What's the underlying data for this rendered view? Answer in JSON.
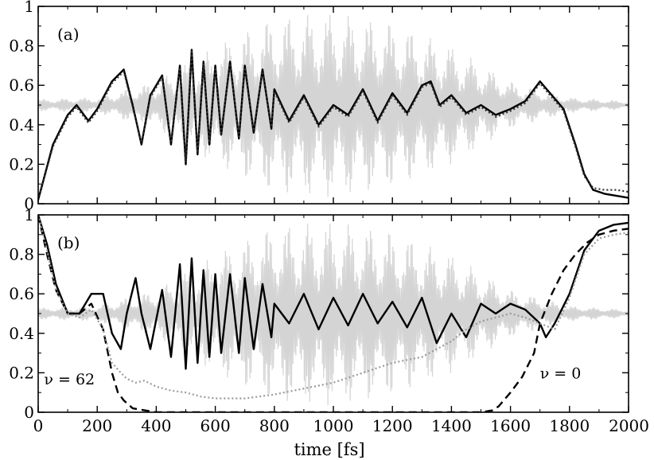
{
  "colors": {
    "fast_oscillation": "#d4d4d4",
    "solid": "#000000",
    "dashed": "#000000",
    "dotted_light": "#9a9a9a",
    "dotted_dark": "#333333"
  },
  "chart_data": [
    {
      "type": "line",
      "panel_label": "(a)",
      "xlabel": "",
      "ylabel": "",
      "xlim": [
        0,
        2000
      ],
      "ylim": [
        0,
        1
      ],
      "y_ticks": [
        "0",
        "0.2",
        "0.4",
        "0.6",
        "0.8",
        "1"
      ],
      "y_tick_values": [
        0,
        0.2,
        0.4,
        0.6,
        0.8,
        1
      ],
      "grid": false,
      "series": [
        {
          "style": "gray-band",
          "x": [
            0,
            200,
            400,
            600,
            800,
            1000,
            1200,
            1400,
            1600,
            1800,
            2000
          ],
          "y": [
            0.5,
            0.5,
            0.5,
            0.5,
            0.5,
            0.5,
            0.5,
            0.5,
            0.5,
            0.5,
            0.5
          ],
          "amplitude": [
            0.03,
            0.04,
            0.12,
            0.3,
            0.45,
            0.47,
            0.42,
            0.3,
            0.12,
            0.04,
            0.02
          ]
        },
        {
          "style": "solid",
          "x": [
            0,
            50,
            100,
            130,
            170,
            200,
            250,
            290,
            320,
            350,
            380,
            420,
            450,
            480,
            500,
            520,
            540,
            560,
            580,
            600,
            620,
            650,
            680,
            700,
            730,
            760,
            790,
            800,
            850,
            900,
            950,
            1000,
            1050,
            1100,
            1150,
            1200,
            1250,
            1300,
            1330,
            1360,
            1400,
            1450,
            1500,
            1550,
            1600,
            1650,
            1700,
            1740,
            1780,
            1820,
            1850,
            1880,
            1920,
            1960,
            2000
          ],
          "y": [
            0.02,
            0.3,
            0.45,
            0.5,
            0.42,
            0.48,
            0.62,
            0.68,
            0.5,
            0.3,
            0.55,
            0.65,
            0.3,
            0.7,
            0.2,
            0.78,
            0.25,
            0.72,
            0.3,
            0.7,
            0.35,
            0.72,
            0.33,
            0.7,
            0.36,
            0.68,
            0.38,
            0.58,
            0.42,
            0.55,
            0.4,
            0.5,
            0.45,
            0.58,
            0.42,
            0.56,
            0.46,
            0.6,
            0.62,
            0.5,
            0.55,
            0.46,
            0.5,
            0.45,
            0.48,
            0.52,
            0.62,
            0.55,
            0.48,
            0.3,
            0.15,
            0.07,
            0.05,
            0.04,
            0.03
          ]
        },
        {
          "style": "dotted-dark",
          "x": [
            0,
            50,
            100,
            130,
            170,
            200,
            250,
            290,
            320,
            350,
            380,
            420,
            450,
            480,
            500,
            520,
            540,
            560,
            580,
            600,
            620,
            650,
            680,
            700,
            730,
            760,
            790,
            800,
            850,
            900,
            950,
            1000,
            1050,
            1100,
            1150,
            1200,
            1250,
            1300,
            1330,
            1360,
            1400,
            1450,
            1500,
            1550,
            1600,
            1650,
            1700,
            1740,
            1780,
            1820,
            1850,
            1880,
            1920,
            1960,
            2000
          ],
          "y": [
            0.02,
            0.29,
            0.44,
            0.49,
            0.41,
            0.47,
            0.61,
            0.67,
            0.49,
            0.31,
            0.54,
            0.64,
            0.31,
            0.69,
            0.21,
            0.77,
            0.26,
            0.71,
            0.31,
            0.69,
            0.36,
            0.71,
            0.34,
            0.69,
            0.37,
            0.67,
            0.39,
            0.57,
            0.41,
            0.54,
            0.39,
            0.49,
            0.44,
            0.57,
            0.41,
            0.55,
            0.45,
            0.59,
            0.61,
            0.49,
            0.54,
            0.45,
            0.49,
            0.44,
            0.47,
            0.51,
            0.61,
            0.54,
            0.47,
            0.29,
            0.14,
            0.08,
            0.07,
            0.07,
            0.06
          ]
        }
      ]
    },
    {
      "type": "line",
      "panel_label": "(b)",
      "xlabel": "time [fs]",
      "ylabel": "",
      "xlim": [
        0,
        2000
      ],
      "ylim": [
        0,
        1
      ],
      "x_ticks": [
        "0",
        "200",
        "400",
        "600",
        "800",
        "1000",
        "1200",
        "1400",
        "1600",
        "1800",
        "2000"
      ],
      "x_tick_values": [
        0,
        200,
        400,
        600,
        800,
        1000,
        1200,
        1400,
        1600,
        1800,
        2000
      ],
      "y_ticks": [
        "0",
        "0.2",
        "0.4",
        "0.6",
        "0.8",
        "1"
      ],
      "y_tick_values": [
        0,
        0.2,
        0.4,
        0.6,
        0.8,
        1
      ],
      "grid": false,
      "annotations": [
        {
          "text": "ν = 62",
          "x": 20,
          "y": 0.17
        },
        {
          "text": "ν = 0",
          "x": 1700,
          "y": 0.2
        }
      ],
      "series": [
        {
          "style": "gray-band",
          "x": [
            0,
            200,
            400,
            600,
            800,
            1000,
            1200,
            1400,
            1600,
            1800,
            2000
          ],
          "y": [
            0.5,
            0.5,
            0.5,
            0.5,
            0.5,
            0.5,
            0.5,
            0.5,
            0.5,
            0.5,
            0.5
          ],
          "amplitude": [
            0.03,
            0.04,
            0.12,
            0.3,
            0.45,
            0.47,
            0.42,
            0.3,
            0.12,
            0.04,
            0.02
          ]
        },
        {
          "style": "solid",
          "x": [
            0,
            30,
            60,
            100,
            140,
            180,
            220,
            250,
            280,
            300,
            330,
            350,
            380,
            420,
            450,
            480,
            500,
            520,
            540,
            560,
            580,
            600,
            620,
            650,
            680,
            700,
            730,
            760,
            790,
            800,
            850,
            900,
            950,
            1000,
            1050,
            1100,
            1150,
            1200,
            1250,
            1300,
            1350,
            1400,
            1450,
            1500,
            1550,
            1600,
            1650,
            1700,
            1720,
            1750,
            1800,
            1850,
            1900,
            1950,
            2000
          ],
          "y": [
            1.0,
            0.85,
            0.65,
            0.5,
            0.5,
            0.6,
            0.6,
            0.4,
            0.32,
            0.5,
            0.68,
            0.5,
            0.32,
            0.62,
            0.28,
            0.75,
            0.22,
            0.78,
            0.25,
            0.72,
            0.28,
            0.7,
            0.3,
            0.7,
            0.3,
            0.68,
            0.32,
            0.65,
            0.38,
            0.55,
            0.45,
            0.6,
            0.42,
            0.58,
            0.44,
            0.6,
            0.45,
            0.56,
            0.43,
            0.58,
            0.35,
            0.5,
            0.38,
            0.55,
            0.5,
            0.55,
            0.52,
            0.45,
            0.38,
            0.45,
            0.6,
            0.82,
            0.92,
            0.95,
            0.96
          ]
        },
        {
          "style": "dashed",
          "x": [
            0,
            30,
            60,
            100,
            140,
            180,
            220,
            250,
            270,
            290,
            320,
            360,
            400,
            500,
            600,
            800,
            1000,
            1200,
            1400,
            1500,
            1540,
            1560,
            1600,
            1640,
            1680,
            1700,
            1740,
            1780,
            1820,
            1860,
            1900,
            1950,
            2000
          ],
          "y": [
            1.0,
            0.8,
            0.62,
            0.5,
            0.5,
            0.55,
            0.42,
            0.2,
            0.1,
            0.06,
            0.02,
            0.01,
            0.0,
            0.0,
            0.0,
            0.0,
            0.0,
            0.0,
            0.0,
            0.0,
            0.01,
            0.03,
            0.1,
            0.18,
            0.3,
            0.45,
            0.6,
            0.72,
            0.8,
            0.86,
            0.9,
            0.92,
            0.93
          ]
        },
        {
          "style": "dotted-light",
          "x": [
            0,
            30,
            60,
            100,
            140,
            180,
            220,
            250,
            280,
            300,
            330,
            360,
            400,
            450,
            500,
            550,
            600,
            700,
            800,
            900,
            1000,
            1100,
            1200,
            1300,
            1350,
            1400,
            1450,
            1500,
            1550,
            1600,
            1650,
            1700,
            1750,
            1800,
            1850,
            1900,
            1950,
            2000
          ],
          "y": [
            1.0,
            0.82,
            0.62,
            0.5,
            0.48,
            0.52,
            0.42,
            0.25,
            0.2,
            0.17,
            0.15,
            0.16,
            0.13,
            0.11,
            0.1,
            0.08,
            0.07,
            0.07,
            0.09,
            0.12,
            0.15,
            0.2,
            0.25,
            0.28,
            0.32,
            0.36,
            0.42,
            0.46,
            0.48,
            0.5,
            0.48,
            0.45,
            0.42,
            0.58,
            0.8,
            0.88,
            0.9,
            0.91
          ]
        }
      ]
    }
  ]
}
